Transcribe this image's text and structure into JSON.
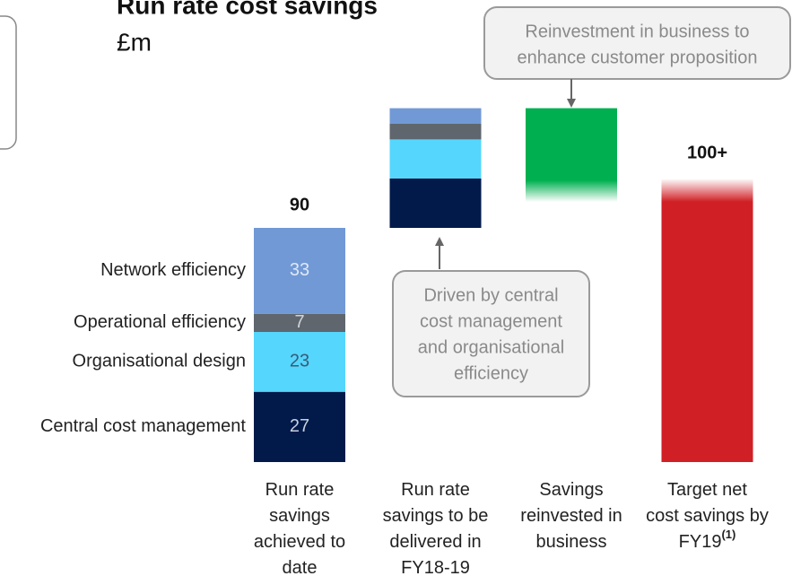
{
  "chart_data": {
    "type": "waterfall",
    "title": "Run rate cost savings",
    "subtitle": "£m",
    "categories": [
      [
        "Run rate",
        "savings",
        "achieved to",
        "date"
      ],
      [
        "Run rate",
        "savings to be",
        "delivered in",
        "FY18-19"
      ],
      [
        "Savings",
        "reinvested in",
        "business"
      ],
      [
        "Target net",
        "cost savings by",
        "FY19"
      ]
    ],
    "footnote": "(1)",
    "series": [
      {
        "name": "Central cost management",
        "color": "#011a4a",
        "values": [
          27,
          19,
          null,
          null
        ],
        "value_labels": [
          "27",
          null,
          null,
          null
        ],
        "label_color": "#c8d0e0"
      },
      {
        "name": "Organisational design",
        "color": "#55d6fc",
        "values": [
          23,
          15,
          null,
          null
        ],
        "value_labels": [
          "23",
          null,
          null,
          null
        ],
        "label_color": "#3a5a78"
      },
      {
        "name": "Operational efficiency",
        "color": "#5f666d",
        "values": [
          7,
          6,
          null,
          null
        ],
        "value_labels": [
          "7",
          null,
          null,
          null
        ],
        "label_color": "#d0d4d8"
      },
      {
        "name": "Network efficiency",
        "color": "#7199d6",
        "values": [
          33,
          6,
          null,
          null
        ],
        "value_labels": [
          "33",
          null,
          null,
          null
        ],
        "label_color": "#dfe8f6"
      },
      {
        "color": "#00b050",
        "values": [
          null,
          null,
          -36,
          null
        ],
        "fade": "bottom"
      },
      {
        "color": "#d01f25",
        "values": [
          null,
          null,
          null,
          100
        ],
        "value_labels": [
          null,
          null,
          null,
          "100+"
        ],
        "fade": "top"
      }
    ],
    "totals": [
      90,
      null,
      null,
      null
    ],
    "annotations": [
      {
        "text": [
          "Reinvestment in business to",
          "enhance customer proposition"
        ],
        "points_to": 2
      },
      {
        "text": [
          "Driven by central",
          "cost management",
          "and organisational",
          "efficiency"
        ],
        "points_to": 1
      }
    ]
  }
}
